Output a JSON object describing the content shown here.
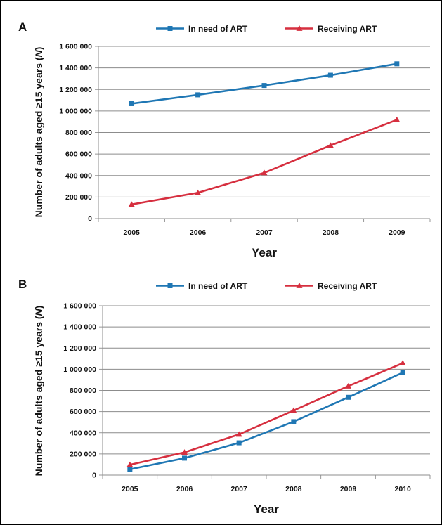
{
  "chart_data": [
    {
      "panel": "A",
      "type": "line",
      "categories": [
        "2005",
        "2006",
        "2007",
        "2008",
        "2009"
      ],
      "series": [
        {
          "name": "In need of ART",
          "color": "#1f77b4",
          "marker": "square",
          "values": [
            1068000,
            1150000,
            1237000,
            1332000,
            1438000
          ]
        },
        {
          "name": "Receiving ART",
          "color": "#d62f3f",
          "marker": "triangle",
          "values": [
            132000,
            240000,
            425000,
            680000,
            918000
          ]
        }
      ],
      "ylim": [
        0,
        1600000
      ],
      "yticks": [
        0,
        200000,
        400000,
        600000,
        800000,
        1000000,
        1200000,
        1400000,
        1600000
      ],
      "ytick_labels": [
        "0",
        "200 000",
        "400 000",
        "600 000",
        "800 000",
        "1 000 000",
        "1 200 000",
        "1 400 000",
        "1 600 000"
      ],
      "xlabel": "Year",
      "ylabel_prefix": "Number of adults aged ≥15 years (",
      "ylabel_italic": "N",
      "ylabel_suffix": ")",
      "legend": "top",
      "grid": true
    },
    {
      "panel": "B",
      "type": "line",
      "categories": [
        "2005",
        "2006",
        "2007",
        "2008",
        "2009",
        "2010"
      ],
      "series": [
        {
          "name": "In need of ART",
          "color": "#1f77b4",
          "marker": "square",
          "values": [
            55000,
            160000,
            305000,
            505000,
            735000,
            968000
          ]
        },
        {
          "name": "Receiving ART",
          "color": "#d62f3f",
          "marker": "triangle",
          "values": [
            98000,
            215000,
            385000,
            610000,
            840000,
            1058000
          ]
        }
      ],
      "ylim": [
        0,
        1600000
      ],
      "yticks": [
        0,
        200000,
        400000,
        600000,
        800000,
        1000000,
        1200000,
        1400000,
        1600000
      ],
      "ytick_labels": [
        "0",
        "200 000",
        "400 000",
        "600 000",
        "800 000",
        "1 000 000",
        "1 200 000",
        "1 400 000",
        "1 600 000"
      ],
      "xlabel": "Year",
      "ylabel_prefix": "Number of adults aged ≥15 years (",
      "ylabel_italic": "N",
      "ylabel_suffix": ")",
      "legend": "top",
      "grid": true
    }
  ]
}
